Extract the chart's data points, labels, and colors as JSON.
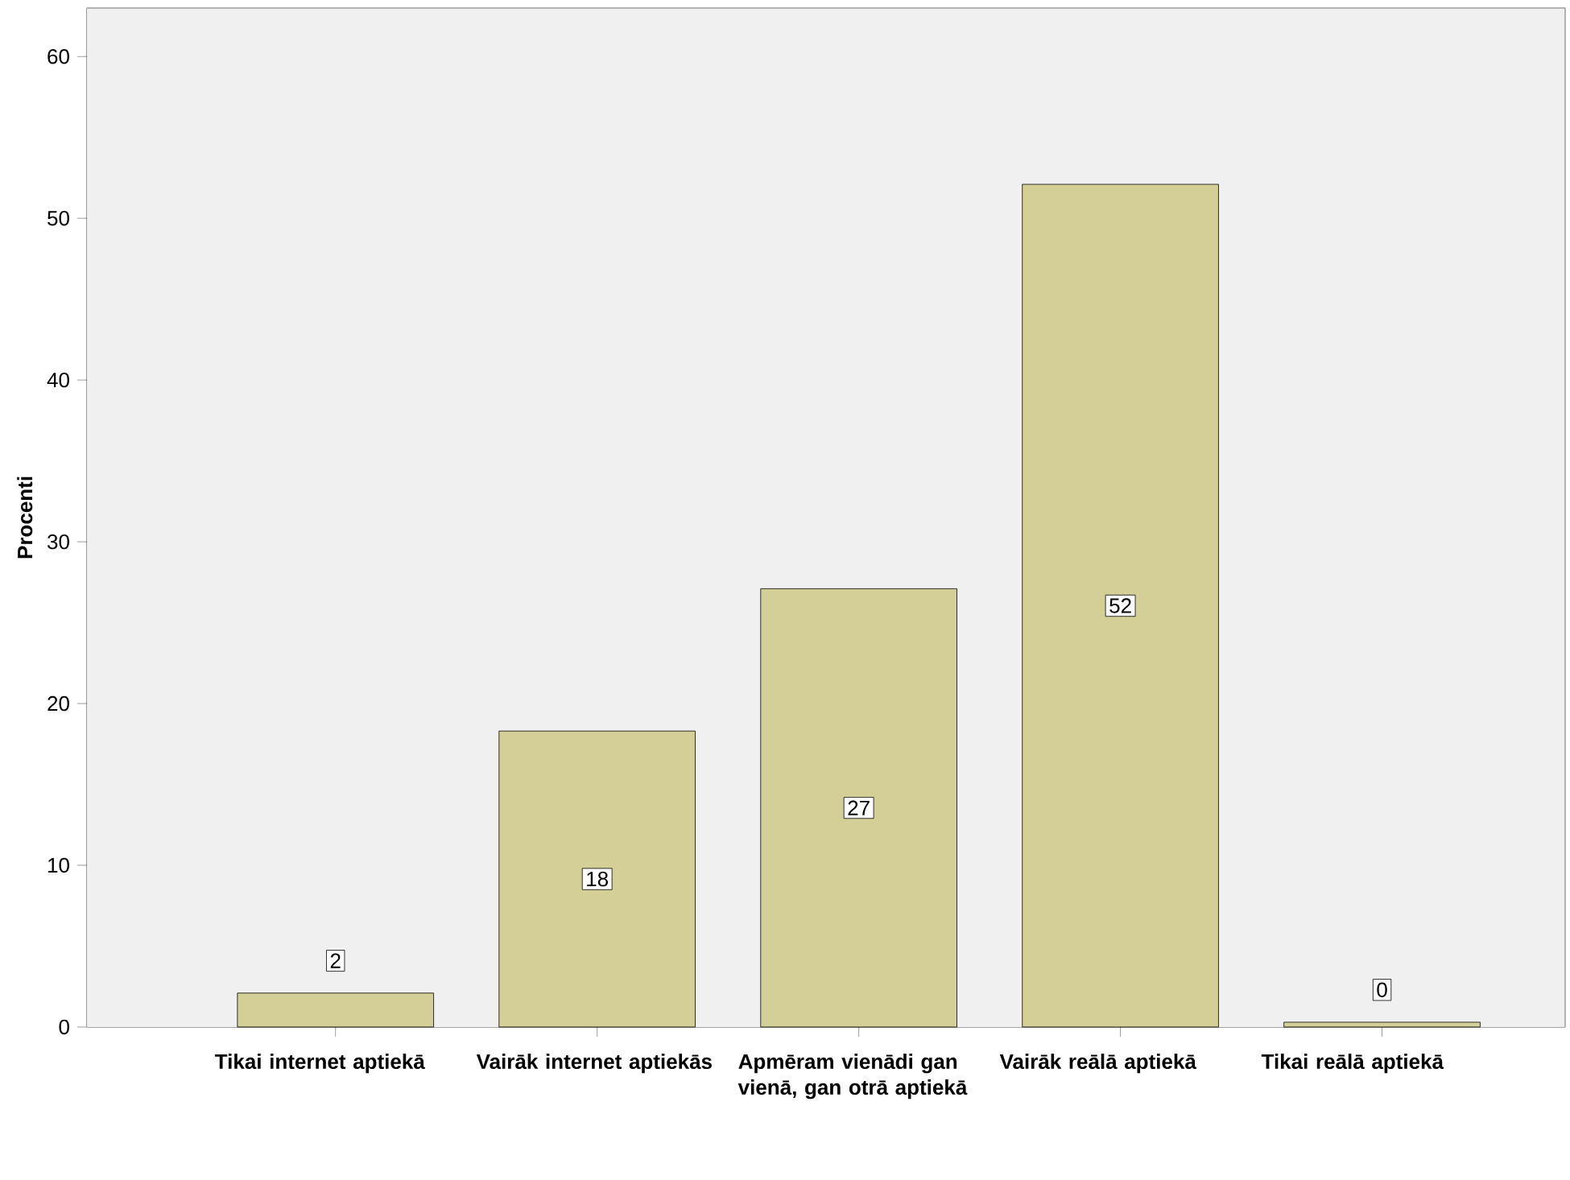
{
  "chart_data": {
    "type": "bar",
    "ylabel": "Procenti",
    "categories": [
      "Tikai internet aptiekā",
      "Vairāk internet aptiekās",
      "Apmēram vienādi gan vienā, gan otrā aptiekā",
      "Vairāk reālā aptiekā",
      "Tikai reālā aptiekā"
    ],
    "values": [
      2.1,
      18.3,
      27.1,
      52.1,
      0.3
    ],
    "value_labels": [
      "2",
      "18",
      "27",
      "52",
      "0"
    ],
    "color": "#d4cf96",
    "ylim": [
      0,
      63
    ],
    "yticks": [
      0,
      10,
      20,
      30,
      40,
      50,
      60
    ],
    "grid": false
  }
}
